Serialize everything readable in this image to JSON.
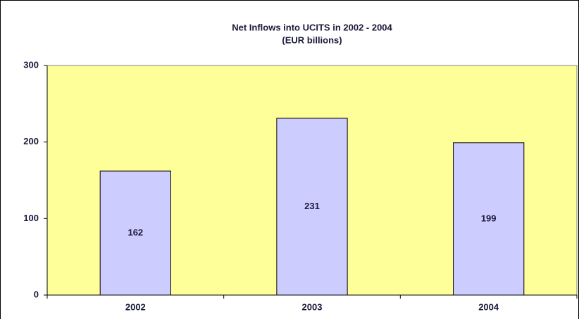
{
  "chart_data": {
    "type": "bar",
    "title": "Net Inflows into UCITS in 2002 - 2004",
    "subtitle": "(EUR billions)",
    "categories": [
      "2002",
      "2003",
      "2004"
    ],
    "values": [
      162,
      231,
      199
    ],
    "color": "#ccccff",
    "ylim": [
      0,
      300
    ],
    "yticks": [
      0,
      100,
      200,
      300
    ],
    "plot_background": "#ffff99"
  }
}
